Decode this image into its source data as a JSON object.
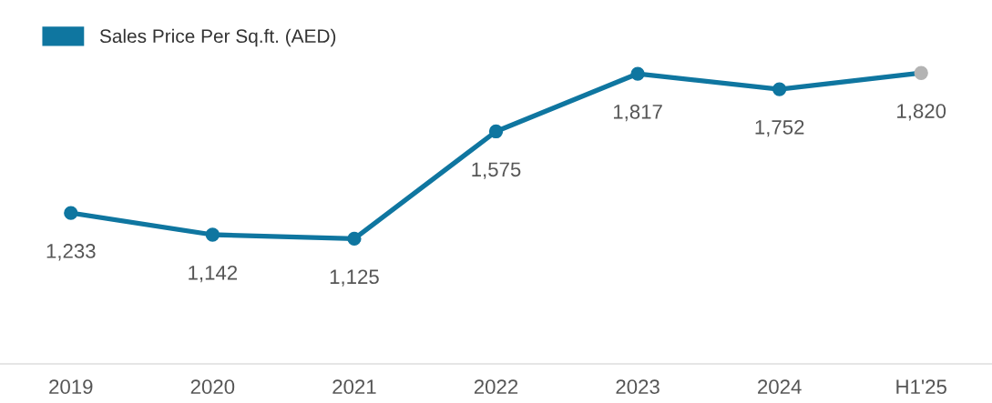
{
  "chart_data": {
    "type": "line",
    "categories": [
      "2019",
      "2020",
      "2021",
      "2022",
      "2023",
      "2024",
      "H1'25"
    ],
    "series": [
      {
        "name": "Sales Price Per Sq.ft. (AED)",
        "color": "#0f76a0",
        "colors": [
          "#0f76a0",
          "#0f76a0",
          "#0f76a0",
          "#0f76a0",
          "#0f76a0",
          "#0f76a0",
          "#b3b3b3"
        ],
        "values": [
          1233,
          1142,
          1125,
          1575,
          1817,
          1752,
          1820
        ],
        "value_labels": [
          "1,233",
          "1,142",
          "1,125",
          "1,575",
          "1,817",
          "1,752",
          "1,820"
        ]
      }
    ],
    "legend": "top left",
    "marker": "circle",
    "line_style": "solid",
    "grid": false,
    "tick_labels": "x"
  }
}
